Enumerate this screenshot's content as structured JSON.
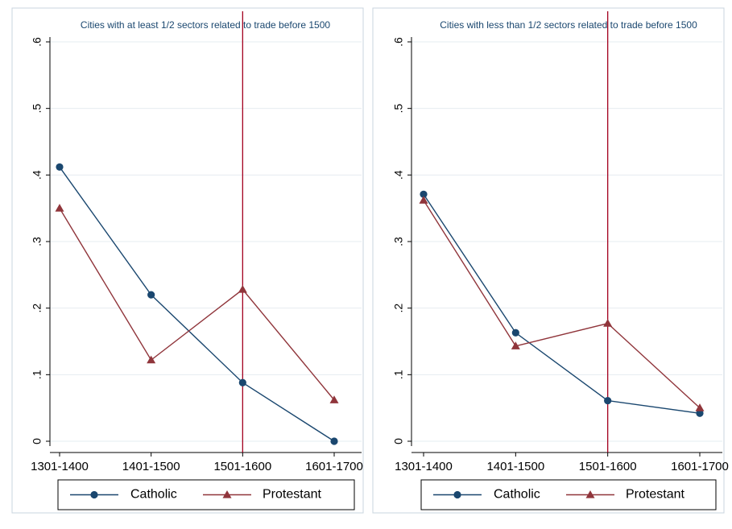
{
  "chart_data": [
    {
      "type": "line",
      "title": "Cities with at least 1/2 sectors related to trade before 1500",
      "categories": [
        "1301-1400",
        "1401-1500",
        "1501-1600",
        "1601-1700"
      ],
      "y_ticks": [
        ".6",
        ".5",
        ".4",
        ".3",
        ".2",
        ".1",
        "0"
      ],
      "ylim": [
        0,
        0.6
      ],
      "vline_at": "1501-1600",
      "grid": true,
      "legend_placement": "bottom",
      "series": [
        {
          "name": "Catholic",
          "values": [
            0.412,
            0.22,
            0.088,
            0.0
          ],
          "color": "#1a476f",
          "marker": "circle"
        },
        {
          "name": "Protestant",
          "values": [
            0.35,
            0.122,
            0.228,
            0.062
          ],
          "color": "#90353b",
          "marker": "triangle"
        }
      ]
    },
    {
      "type": "line",
      "title": "Cities with less than 1/2 sectors related to trade before 1500",
      "categories": [
        "1301-1400",
        "1401-1500",
        "1501-1600",
        "1601-1700"
      ],
      "y_ticks": [
        ".6",
        ".5",
        ".4",
        ".3",
        ".2",
        ".1",
        "0"
      ],
      "ylim": [
        0,
        0.6
      ],
      "vline_at": "1501-1600",
      "grid": true,
      "legend_placement": "bottom",
      "series": [
        {
          "name": "Catholic",
          "values": [
            0.371,
            0.163,
            0.061,
            0.042
          ],
          "color": "#1a476f",
          "marker": "circle"
        },
        {
          "name": "Protestant",
          "values": [
            0.362,
            0.143,
            0.177,
            0.05
          ],
          "color": "#90353b",
          "marker": "triangle"
        }
      ]
    }
  ],
  "colors": {
    "frame": "#c8d4df",
    "gridline": "#e6ecf0",
    "axis": "#000000",
    "vline": "#a3001f"
  }
}
